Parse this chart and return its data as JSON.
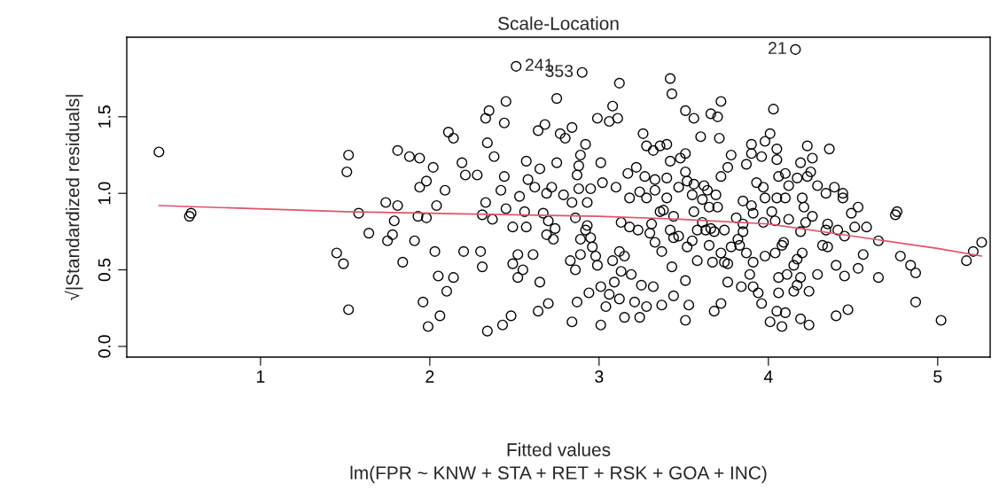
{
  "chart_data": {
    "type": "scatter",
    "title": "Scale-Location",
    "xlabel": "Fitted values",
    "ylabel": "√|Standardized residuals|",
    "xlim": [
      0.21,
      5.31
    ],
    "ylim": [
      -0.07,
      2.02
    ],
    "xticks": [
      1,
      2,
      3,
      4,
      5
    ],
    "yticks": [
      {
        "value": 0,
        "label": "0.0"
      },
      {
        "value": 0.5,
        "label": "0.5"
      },
      {
        "value": 1,
        "label": "1.0"
      },
      {
        "value": 1.5,
        "label": "1.5"
      }
    ],
    "grid": false,
    "annotations": [
      {
        "text": "21",
        "x": 4.16,
        "y": 1.94
      },
      {
        "text": "241",
        "x": 2.51,
        "y": 1.83
      },
      {
        "text": "353",
        "x": 2.9,
        "y": 1.79
      },
      "lm(FPR ~ KNW + STA + RET + RSK + GOA + INC)"
    ],
    "series": [
      {
        "marker": "circle",
        "color": "#000000",
        "x": [
          0.4,
          0.58,
          0.59,
          1.52,
          1.51,
          1.52,
          1.45,
          1.49,
          1.58,
          1.64,
          1.81,
          1.88,
          1.94,
          2.02,
          1.74,
          1.81,
          1.79,
          1.78,
          1.75,
          1.91,
          1.84,
          1.93,
          1.98,
          2.04,
          2.09,
          1.94,
          1.98,
          2.11,
          2.14,
          2.19,
          2.21,
          2.03,
          2.2,
          2.05,
          2.14,
          2.1,
          1.96,
          2.06,
          1.99,
          2.51,
          2.9,
          3.12,
          3.42,
          3.43,
          2.45,
          2.35,
          2.33,
          2.44,
          2.75,
          3.08,
          2.99,
          3.06,
          3.11,
          2.64,
          2.68,
          2.77,
          2.8,
          2.84,
          2.92,
          2.89,
          2.88,
          2.87,
          2.34,
          2.38,
          2.57,
          2.65,
          2.75,
          3.01,
          2.28,
          2.44,
          3.26,
          3.28,
          3.36,
          3.4,
          3.32,
          3.51,
          3.56,
          3.66,
          3.72,
          3.7,
          3.6,
          3.71,
          3.78,
          3.76,
          3.72,
          3.51,
          3.48,
          3.42,
          3.4,
          3.51,
          2.58,
          2.42,
          2.62,
          2.69,
          2.79,
          2.72,
          2.84,
          2.93,
          2.88,
          2.95,
          3.02,
          3.1,
          2.33,
          2.31,
          2.37,
          2.45,
          2.53,
          2.56,
          2.49,
          2.57,
          2.67,
          2.7,
          2.74,
          2.73,
          2.69,
          2.93,
          2.92,
          2.95,
          2.89,
          2.96,
          2.98,
          2.99,
          2.86,
          2.3,
          2.31,
          2.52,
          2.49,
          2.55,
          2.52,
          2.61,
          2.65,
          2.7,
          2.64,
          2.48,
          2.43,
          2.34,
          2.83,
          2.86,
          2.89,
          2.87,
          2.94,
          2.84,
          3.01,
          3.01,
          3.04,
          3.06,
          3.09,
          3.12,
          3.08,
          3.15,
          3.13,
          3.15,
          3.12,
          3.21,
          3.24,
          3.28,
          3.37,
          3.19,
          3.25,
          3.32,
          3.44,
          3.51,
          3.53,
          3.43,
          3.51,
          3.68,
          3.72,
          3.76,
          3.13,
          3.18,
          3.23,
          3.31,
          3.3,
          3.33,
          3.37,
          3.18,
          3.24,
          3.28,
          3.33,
          3.17,
          3.22,
          3.27,
          3.33,
          3.4,
          3.38,
          3.36,
          3.44,
          3.42,
          3.47,
          3.44,
          3.47,
          3.52,
          3.56,
          3.55,
          3.62,
          3.64,
          3.69,
          3.61,
          3.65,
          3.7,
          3.56,
          3.61,
          3.63,
          3.66,
          3.68,
          3.58,
          3.55,
          3.58,
          3.65,
          3.72,
          3.74,
          3.78,
          3.52,
          4.16,
          4.03,
          4.01,
          3.98,
          3.9,
          3.9,
          3.96,
          4.05,
          4.05,
          4.23,
          4.36,
          4.26,
          4.19,
          3.87,
          3.93,
          3.97,
          4.06,
          4.1,
          4.12,
          4.17,
          4.23,
          4.25,
          4.29,
          4.34,
          4.39,
          4.44,
          4.44,
          3.85,
          3.9,
          3.98,
          4.05,
          4.1,
          4.2,
          4.21,
          3.91,
          3.81,
          3.85,
          3.97,
          4.02,
          4.04,
          4.12,
          4.22,
          4.26,
          4.49,
          4.53,
          4.75,
          4.76,
          3.85,
          3.82,
          3.83,
          3.74,
          4.19,
          4.34,
          4.35,
          4.41,
          4.45,
          4.51,
          4.58,
          4.65,
          4.32,
          4.35,
          4.09,
          4.08,
          3.87,
          3.91,
          3.98,
          4.04,
          4.2,
          4.17,
          4.15,
          3.67,
          3.76,
          4.56,
          4.78,
          4.84,
          4.87,
          4.65,
          4.53,
          4.45,
          4.4,
          5.26,
          5.21,
          5.17,
          3.89,
          4.06,
          4.11,
          4.19,
          4.29,
          3.84,
          3.91,
          3.94,
          3.96,
          4.06,
          4.15,
          4.24,
          4.17,
          4.05,
          4.1,
          4.01,
          4.08,
          4.19,
          4.24,
          4.4,
          4.47,
          4.87,
          5.02
        ],
        "values": [
          1.27,
          0.85,
          0.87,
          1.25,
          1.14,
          0.24,
          0.61,
          0.54,
          0.87,
          0.74,
          1.28,
          1.24,
          1.23,
          1.17,
          0.94,
          0.92,
          0.82,
          0.73,
          0.69,
          0.69,
          0.55,
          0.85,
          0.84,
          0.92,
          1.02,
          1.04,
          1.08,
          1.4,
          1.36,
          1.2,
          1.12,
          0.62,
          0.62,
          0.46,
          0.45,
          0.36,
          0.29,
          0.2,
          0.13,
          1.83,
          1.79,
          1.72,
          1.75,
          1.65,
          1.6,
          1.54,
          1.49,
          1.46,
          1.62,
          1.57,
          1.49,
          1.47,
          1.49,
          1.41,
          1.45,
          1.39,
          1.36,
          1.43,
          1.32,
          1.25,
          1.18,
          1.12,
          1.33,
          1.24,
          1.21,
          1.16,
          1.2,
          1.2,
          1.12,
          1.11,
          1.39,
          1.31,
          1.31,
          1.32,
          1.28,
          1.54,
          1.49,
          1.52,
          1.6,
          1.5,
          1.37,
          1.36,
          1.25,
          1.17,
          1.11,
          1.26,
          1.23,
          1.21,
          1.1,
          1.14,
          1.09,
          1.02,
          1.04,
          1.0,
          0.99,
          1.04,
          0.94,
          0.94,
          1.03,
          1.03,
          1.07,
          1.04,
          0.94,
          0.86,
          0.83,
          0.9,
          0.98,
          0.88,
          0.78,
          0.78,
          0.87,
          0.82,
          0.77,
          0.7,
          0.73,
          0.79,
          0.76,
          0.71,
          0.7,
          0.65,
          0.59,
          0.53,
          0.84,
          0.62,
          0.52,
          0.6,
          0.54,
          0.5,
          0.45,
          0.6,
          0.42,
          0.28,
          0.23,
          0.2,
          0.14,
          0.1,
          0.56,
          0.5,
          0.6,
          0.29,
          0.35,
          0.16,
          0.14,
          0.39,
          0.26,
          0.34,
          0.42,
          0.62,
          0.56,
          0.59,
          0.49,
          0.19,
          0.31,
          0.29,
          0.19,
          0.26,
          0.27,
          0.47,
          0.4,
          0.39,
          0.33,
          0.17,
          0.27,
          0.52,
          0.43,
          0.23,
          0.28,
          0.42,
          0.81,
          0.78,
          0.76,
          0.8,
          0.74,
          0.68,
          0.62,
          0.97,
          1.01,
          0.97,
          1.02,
          1.13,
          1.17,
          1.11,
          1.09,
          0.97,
          0.89,
          0.88,
          0.85,
          0.76,
          0.72,
          0.71,
          1.04,
          1.08,
          1.06,
          0.99,
          1.05,
          1.02,
          0.99,
          0.96,
          0.91,
          0.91,
          0.88,
          0.81,
          0.76,
          0.77,
          0.75,
          0.76,
          0.69,
          0.56,
          0.66,
          0.61,
          0.55,
          0.65,
          0.65,
          1.94,
          1.55,
          1.39,
          1.34,
          1.32,
          1.26,
          1.24,
          1.29,
          1.22,
          1.31,
          1.29,
          1.23,
          1.2,
          1.19,
          1.07,
          1.04,
          1.11,
          1.13,
          1.05,
          1.1,
          1.11,
          1.14,
          1.05,
          1.0,
          1.04,
          1.0,
          0.97,
          0.95,
          0.92,
          0.97,
          0.97,
          0.97,
          0.97,
          0.91,
          0.87,
          0.84,
          0.8,
          0.81,
          0.88,
          0.82,
          0.83,
          0.81,
          0.85,
          0.87,
          0.91,
          0.86,
          0.88,
          0.75,
          0.7,
          0.66,
          0.76,
          0.75,
          0.76,
          0.8,
          0.76,
          0.72,
          0.78,
          0.78,
          0.69,
          0.66,
          0.65,
          0.68,
          0.66,
          0.61,
          0.55,
          0.59,
          0.61,
          0.61,
          0.57,
          0.53,
          0.55,
          0.54,
          0.6,
          0.59,
          0.53,
          0.48,
          0.45,
          0.51,
          0.46,
          0.53,
          0.68,
          0.62,
          0.56,
          0.47,
          0.45,
          0.47,
          0.45,
          0.47,
          0.39,
          0.39,
          0.35,
          0.28,
          0.35,
          0.36,
          0.36,
          0.4,
          0.23,
          0.22,
          0.16,
          0.13,
          0.18,
          0.14,
          0.2,
          0.24,
          0.29,
          0.17
        ]
      },
      {
        "type": "line",
        "color": "#df536b",
        "x": [
          0.4,
          1.5,
          2.0,
          2.5,
          3.0,
          3.5,
          4.0,
          4.5,
          5.0,
          5.26
        ],
        "values": [
          0.92,
          0.88,
          0.87,
          0.86,
          0.85,
          0.83,
          0.8,
          0.72,
          0.64,
          0.59
        ]
      }
    ]
  }
}
